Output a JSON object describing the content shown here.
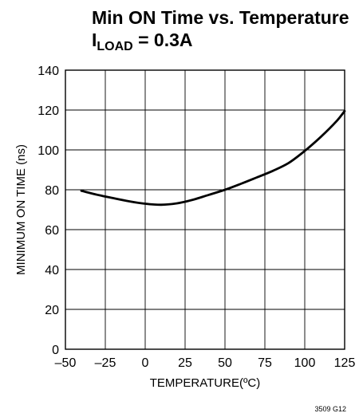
{
  "chart_data": {
    "type": "line",
    "title_main": "Min ON Time vs. Temperature",
    "title_sub_prefix": "I",
    "title_sub_subscript": "LOAD",
    "title_sub_suffix": " = 0.3A",
    "xlabel": "TEMPERATURE(ºC)",
    "ylabel": "MINIMUM ON TIME (ns)",
    "xlim": [
      -50,
      125
    ],
    "ylim": [
      0,
      140
    ],
    "x_ticks": [
      -50,
      -25,
      0,
      25,
      50,
      75,
      100,
      125
    ],
    "x_tick_labels": [
      "–50",
      "–25",
      "0",
      "25",
      "50",
      "75",
      "100",
      "125"
    ],
    "y_ticks": [
      0,
      20,
      40,
      60,
      80,
      100,
      120,
      140
    ],
    "y_tick_labels": [
      "0",
      "20",
      "40",
      "60",
      "80",
      "100",
      "120",
      "140"
    ],
    "grid": true,
    "series": [
      {
        "x": [
          -40,
          -30,
          -20,
          -10,
          0,
          10,
          20,
          30,
          40,
          50,
          60,
          70,
          80,
          90,
          100,
          110,
          120,
          125
        ],
        "y": [
          79.5,
          77.5,
          75.8,
          74.2,
          73.0,
          72.5,
          73.2,
          75.0,
          77.5,
          80.0,
          83.0,
          86.2,
          89.5,
          93.5,
          99.5,
          106.5,
          114.5,
          119.5
        ]
      }
    ],
    "footnote": "3509 G12"
  }
}
